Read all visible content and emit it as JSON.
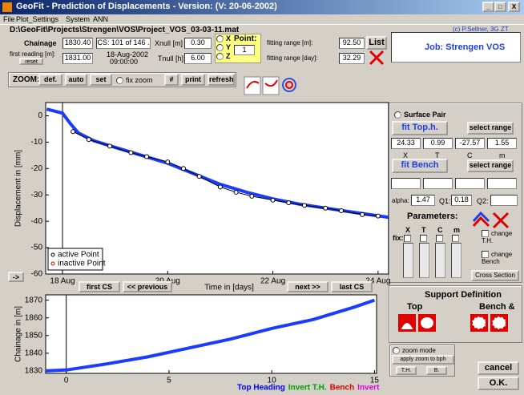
{
  "window": {
    "title": "GeoFit - Prediction of Displacements - Version: (V: 20-06-2002)",
    "controls": [
      "_",
      "□",
      "X"
    ],
    "menu": [
      "File",
      "Plot_Settings",
      "System",
      "ANN"
    ]
  },
  "header": {
    "path": "D:\\GeoFit\\Projects\\Strengen\\VOS\\Project_VOS_03-03-11.mat",
    "copyright": "(c) P.Sellner, 3G ZT",
    "chainage_label": "Chainage",
    "chainage": "1830.40",
    "cs": "CS: 101 of 146 .",
    "xnull_label": "Xnull [m]",
    "xnull": "0.30",
    "radios": [
      "X",
      "Y",
      "Z"
    ],
    "point_label": "Point:",
    "point": "1",
    "first_reading_label": "first reading [m]:",
    "reset": "reset",
    "first_reading": "1831.00",
    "date": "18-Aug-2002",
    "time": "09:00:00",
    "tnull_label": "Tnull [h]:",
    "tnull": "6.00",
    "fit_m_label": "fitting range [m]:",
    "fit_m": "92.50",
    "list": "List",
    "fit_day_label": "fitting range [day]:",
    "fit_day": "32.29",
    "job": "Job: Strengen VOS"
  },
  "toolbar": {
    "zoom": "ZOOM:",
    "def": "def.",
    "auto": "auto",
    "set": "set",
    "fix_zoom": "fix zoom",
    "hash": "#",
    "print": "print",
    "refresh": "refresh"
  },
  "nav": {
    "arrow": "->",
    "first": "first CS",
    "prev": "<< previous",
    "next": "next >>",
    "last": "last CS"
  },
  "displacement_chart": {
    "type": "line",
    "ylabel": "Displacement in [mm]",
    "xlabel": "Time in [days]",
    "xlim": [
      -0.32,
      6.2
    ],
    "ylim": [
      -60,
      5
    ],
    "vline": 0,
    "xticks": [
      {
        "value": 0,
        "label": "18 Aug"
      },
      {
        "value": 2,
        "label": "20 Aug"
      },
      {
        "value": 4,
        "label": "22 Aug"
      },
      {
        "value": 6,
        "label": "24 Aug"
      }
    ],
    "yticks": [
      0,
      -10,
      -20,
      -30,
      -40,
      -50,
      -60
    ],
    "series": [
      {
        "color": "#1a3cff",
        "x": [
          -0.3,
          0,
          0.15,
          0.3,
          0.6,
          1,
          1.5,
          2,
          2.5,
          3,
          3.5,
          4,
          4.5,
          5,
          5.5,
          6.2
        ],
        "values": [
          2.5,
          1,
          -3,
          -6.5,
          -9.5,
          -12,
          -15,
          -18,
          -22,
          -26,
          -29,
          -31.5,
          -33.5,
          -35,
          -36.5,
          -38.5
        ]
      },
      {
        "name": "active Point",
        "color": "#000000",
        "marker": "circle",
        "x": [
          0.2,
          0.5,
          0.9,
          1.3,
          1.6,
          2.0,
          2.3,
          2.6,
          3.0,
          3.3,
          3.6,
          4.0,
          4.3,
          4.6,
          5.0,
          5.3,
          5.7,
          6.0
        ],
        "values": [
          -6,
          -9,
          -11.5,
          -14,
          -15.5,
          -17.5,
          -20,
          -23,
          -27,
          -29,
          -30.5,
          -32,
          -33,
          -34,
          -35,
          -36,
          -37.5,
          -38
        ]
      }
    ],
    "legend": [
      {
        "label": "active Point",
        "color": "#000000"
      },
      {
        "label": "inactive Point",
        "color": "#e00000"
      }
    ]
  },
  "chainage_chart": {
    "type": "line",
    "ylabel": "Chainage in [m]",
    "xlim": [
      -1,
      15.1
    ],
    "ylim": [
      1828.6,
      1873
    ],
    "vline": 0,
    "xticks": [
      0,
      5,
      10,
      15
    ],
    "yticks": [
      1830,
      1840,
      1850,
      1860,
      1870
    ],
    "series": [
      {
        "color": "#1a3cff",
        "x": [
          -1,
          0,
          2,
          4,
          6,
          8,
          10,
          12,
          14,
          15
        ],
        "values": [
          1830,
          1830.5,
          1834,
          1838,
          1843,
          1848,
          1854,
          1859,
          1866,
          1870
        ]
      }
    ],
    "legend": [
      {
        "label": "Top Heading",
        "color": "#0000ff"
      },
      {
        "label": "Invert T.H.",
        "color": "#00a000"
      },
      {
        "label": "Bench",
        "color": "#e00000"
      },
      {
        "label": "Invert",
        "color": "#e000e0"
      }
    ]
  },
  "fit_panel": {
    "surface_pair": "Surface Pair",
    "fit_top": "fit Top.h.",
    "select_range": "select range",
    "top_values": [
      "24.33",
      "0.99",
      "-27.57",
      "1.55"
    ],
    "param_labels": [
      "X",
      "T",
      "C",
      "m"
    ],
    "fit_bench": "fit Bench",
    "alpha_label": "alpha:",
    "alpha": "1.47",
    "q1_label": "Q1:",
    "q1": "0.18",
    "q2_label": "Q2:",
    "parameters": "Parameters:",
    "fix": "fix:",
    "change_th": "change T.H.",
    "change_bench": "change Bench",
    "cross_section": "Cross Section"
  },
  "support": {
    "title": "Support Definition",
    "top": "Top",
    "bench": "Bench &"
  },
  "controls": {
    "zoom_mode": "zoom mode",
    "apply": "apply zoom to bph",
    "th": "T.H.",
    "b": "B.",
    "cancel": "cancel",
    "ok": "O.K."
  }
}
